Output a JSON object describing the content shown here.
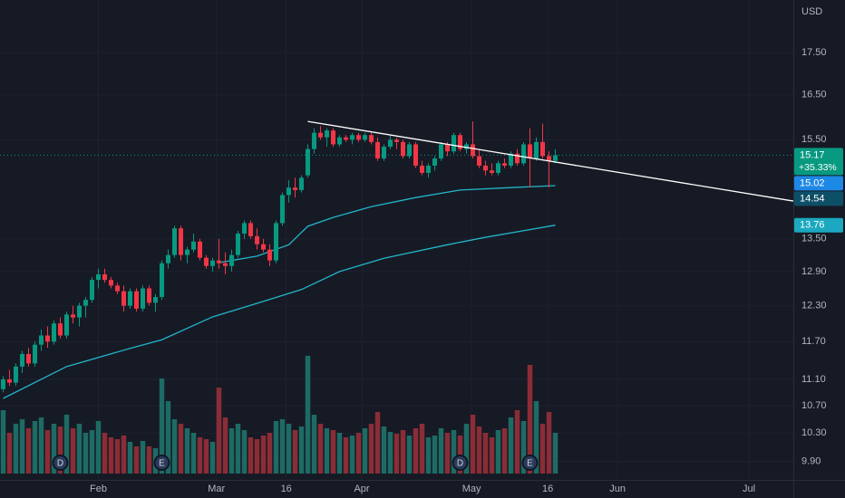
{
  "chart_data": {
    "type": "candlestick",
    "currency": "USD",
    "log_scale": true,
    "grid": true,
    "ylim": [
      9.65,
      18.83
    ],
    "xlim": [
      -0.5,
      124.5
    ],
    "yticks": [
      {
        "value": 17.5,
        "label": "17.50"
      },
      {
        "value": 16.5,
        "label": "16.50"
      },
      {
        "value": 15.5,
        "label": "15.50"
      },
      {
        "value": 13.5,
        "label": "13.50"
      },
      {
        "value": 12.9,
        "label": "12.90"
      },
      {
        "value": 12.3,
        "label": "12.30"
      },
      {
        "value": 11.7,
        "label": "11.70"
      },
      {
        "value": 11.1,
        "label": "11.10"
      },
      {
        "value": 10.7,
        "label": "10.70"
      },
      {
        "value": 10.3,
        "label": "10.30"
      },
      {
        "value": 9.9,
        "label": "9.90"
      }
    ],
    "xticks": [
      {
        "value": 15,
        "label": "Feb"
      },
      {
        "value": 33.6,
        "label": "Mar"
      },
      {
        "value": 44.6,
        "label": "16"
      },
      {
        "value": 56.5,
        "label": "Apr"
      },
      {
        "value": 73.8,
        "label": "May"
      },
      {
        "value": 85.8,
        "label": "16"
      },
      {
        "value": 96.8,
        "label": "Jun"
      },
      {
        "value": 117.5,
        "label": "Jul"
      }
    ],
    "up_color": "#089981",
    "down_color": "#f23645",
    "ohlc": [
      [
        10.95,
        11.15,
        10.9,
        11.1
      ],
      [
        11.1,
        11.25,
        11.0,
        11.05
      ],
      [
        11.05,
        11.35,
        11.0,
        11.3
      ],
      [
        11.3,
        11.55,
        11.2,
        11.5
      ],
      [
        11.5,
        11.6,
        11.3,
        11.35
      ],
      [
        11.35,
        11.7,
        11.3,
        11.65
      ],
      [
        11.65,
        11.9,
        11.55,
        11.8
      ],
      [
        11.8,
        11.95,
        11.6,
        11.7
      ],
      [
        11.7,
        12.05,
        11.65,
        12.0
      ],
      [
        12.0,
        12.1,
        11.75,
        11.8
      ],
      [
        11.8,
        12.2,
        11.75,
        12.15
      ],
      [
        12.15,
        12.3,
        12.0,
        12.1
      ],
      [
        12.1,
        12.35,
        11.95,
        12.3
      ],
      [
        12.3,
        12.45,
        12.1,
        12.4
      ],
      [
        12.4,
        12.8,
        12.35,
        12.75
      ],
      [
        12.75,
        12.95,
        12.6,
        12.85
      ],
      [
        12.85,
        12.95,
        12.7,
        12.75
      ],
      [
        12.75,
        12.8,
        12.6,
        12.65
      ],
      [
        12.65,
        12.7,
        12.5,
        12.55
      ],
      [
        12.55,
        12.65,
        12.2,
        12.3
      ],
      [
        12.3,
        12.6,
        12.25,
        12.55
      ],
      [
        12.55,
        12.6,
        12.2,
        12.25
      ],
      [
        12.25,
        12.65,
        12.2,
        12.6
      ],
      [
        12.6,
        12.65,
        12.3,
        12.35
      ],
      [
        12.35,
        12.5,
        12.2,
        12.45
      ],
      [
        12.45,
        13.1,
        12.4,
        13.05
      ],
      [
        13.05,
        13.3,
        12.95,
        13.2
      ],
      [
        13.2,
        13.75,
        13.15,
        13.7
      ],
      [
        13.7,
        13.75,
        13.1,
        13.2
      ],
      [
        13.2,
        13.35,
        13.05,
        13.3
      ],
      [
        13.3,
        13.6,
        13.25,
        13.45
      ],
      [
        13.45,
        13.5,
        13.1,
        13.15
      ],
      [
        13.15,
        13.2,
        12.95,
        13.0
      ],
      [
        13.0,
        13.15,
        12.9,
        13.1
      ],
      [
        13.1,
        13.5,
        12.95,
        13.05
      ],
      [
        13.05,
        13.25,
        12.85,
        13.0
      ],
      [
        13.0,
        13.3,
        12.9,
        13.2
      ],
      [
        13.2,
        13.65,
        13.15,
        13.6
      ],
      [
        13.6,
        13.85,
        13.5,
        13.8
      ],
      [
        13.8,
        13.85,
        13.5,
        13.55
      ],
      [
        13.55,
        13.7,
        13.3,
        13.4
      ],
      [
        13.4,
        13.5,
        13.25,
        13.3
      ],
      [
        13.3,
        13.4,
        13.0,
        13.1
      ],
      [
        13.1,
        13.85,
        13.05,
        13.8
      ],
      [
        13.8,
        14.4,
        13.75,
        14.35
      ],
      [
        14.35,
        14.65,
        14.2,
        14.5
      ],
      [
        14.5,
        14.7,
        14.3,
        14.45
      ],
      [
        14.45,
        14.75,
        14.4,
        14.7
      ],
      [
        14.75,
        15.4,
        14.7,
        15.3
      ],
      [
        15.3,
        15.75,
        15.2,
        15.65
      ],
      [
        15.65,
        15.8,
        15.5,
        15.55
      ],
      [
        15.55,
        15.75,
        15.35,
        15.7
      ],
      [
        15.7,
        15.75,
        15.35,
        15.4
      ],
      [
        15.4,
        15.6,
        15.35,
        15.55
      ],
      [
        15.55,
        15.6,
        15.45,
        15.5
      ],
      [
        15.5,
        15.65,
        15.4,
        15.6
      ],
      [
        15.6,
        15.65,
        15.45,
        15.5
      ],
      [
        15.5,
        15.65,
        15.45,
        15.6
      ],
      [
        15.6,
        15.65,
        15.4,
        15.45
      ],
      [
        15.45,
        15.55,
        15.05,
        15.1
      ],
      [
        15.1,
        15.4,
        15.05,
        15.35
      ],
      [
        15.35,
        15.6,
        15.3,
        15.5
      ],
      [
        15.5,
        15.55,
        15.3,
        15.45
      ],
      [
        15.45,
        15.5,
        15.1,
        15.15
      ],
      [
        15.15,
        15.45,
        15.1,
        15.4
      ],
      [
        15.4,
        15.45,
        14.9,
        14.95
      ],
      [
        14.95,
        15.05,
        14.75,
        14.8
      ],
      [
        14.8,
        15.0,
        14.7,
        14.95
      ],
      [
        14.95,
        15.15,
        14.85,
        15.1
      ],
      [
        15.1,
        15.45,
        15.05,
        15.4
      ],
      [
        15.4,
        15.45,
        15.15,
        15.25
      ],
      [
        15.25,
        15.65,
        15.2,
        15.6
      ],
      [
        15.6,
        15.65,
        15.25,
        15.3
      ],
      [
        15.3,
        15.45,
        15.2,
        15.4
      ],
      [
        15.4,
        15.9,
        15.1,
        15.15
      ],
      [
        15.15,
        15.3,
        14.9,
        14.95
      ],
      [
        14.95,
        15.05,
        14.75,
        14.85
      ],
      [
        14.85,
        15.0,
        14.75,
        14.8
      ],
      [
        14.8,
        15.05,
        14.75,
        15.0
      ],
      [
        15.0,
        15.1,
        14.9,
        14.95
      ],
      [
        14.95,
        15.25,
        14.9,
        15.2
      ],
      [
        15.2,
        15.3,
        14.95,
        15.0
      ],
      [
        15.0,
        15.45,
        14.95,
        15.4
      ],
      [
        15.4,
        15.75,
        14.5,
        15.1
      ],
      [
        15.1,
        15.55,
        15.05,
        15.45
      ],
      [
        15.45,
        15.85,
        15.1,
        15.15
      ],
      [
        15.15,
        15.25,
        14.5,
        15.05
      ],
      [
        15.05,
        15.3,
        15.0,
        15.17
      ]
    ],
    "volume": [
      70,
      45,
      55,
      60,
      50,
      58,
      62,
      48,
      55,
      52,
      65,
      50,
      55,
      45,
      48,
      58,
      45,
      40,
      38,
      42,
      35,
      30,
      36,
      30,
      28,
      105,
      80,
      60,
      55,
      50,
      45,
      40,
      38,
      35,
      95,
      62,
      50,
      55,
      48,
      40,
      38,
      42,
      45,
      58,
      60,
      55,
      48,
      52,
      130,
      65,
      55,
      50,
      48,
      45,
      40,
      42,
      45,
      50,
      55,
      68,
      52,
      46,
      44,
      48,
      42,
      50,
      55,
      40,
      42,
      50,
      45,
      48,
      42,
      55,
      65,
      52,
      45,
      40,
      48,
      50,
      62,
      70,
      58,
      120,
      80,
      55,
      68,
      45
    ],
    "volume_up_color": "#1d6b64",
    "volume_down_color": "#8a2d36",
    "series": [
      {
        "color": "#22b5c9",
        "x": [
          34,
          40,
          45,
          48,
          52,
          58,
          65,
          72,
          80,
          87
        ],
        "values": [
          13.06,
          13.18,
          13.39,
          13.74,
          13.91,
          14.12,
          14.3,
          14.45,
          14.5,
          14.54
        ]
      },
      {
        "color": "#22b5c9",
        "x": [
          0,
          10,
          20,
          25,
          33,
          40,
          47,
          53,
          60,
          70,
          76,
          87
        ],
        "values": [
          10.81,
          11.3,
          11.59,
          11.73,
          12.11,
          12.34,
          12.58,
          12.9,
          13.14,
          13.39,
          13.53,
          13.76
        ]
      }
    ],
    "trendline": {
      "color": "#ffffff",
      "x": [
        48,
        124.5
      ],
      "values": [
        15.9,
        14.23
      ]
    },
    "last_price": 15.17,
    "change_label": "+35.33%",
    "price_tags": [
      {
        "value": 15.17,
        "color": "#089981"
      },
      {
        "value": 15.02,
        "color": "#1e88e5"
      },
      {
        "value": 14.54,
        "color": "#0e4f68"
      },
      {
        "value": 13.76,
        "color": "#1ba8c0"
      }
    ],
    "events": [
      {
        "x": 9,
        "label": "D"
      },
      {
        "x": 25,
        "label": "E"
      },
      {
        "x": 72,
        "label": "D"
      },
      {
        "x": 83,
        "label": "E"
      }
    ]
  }
}
